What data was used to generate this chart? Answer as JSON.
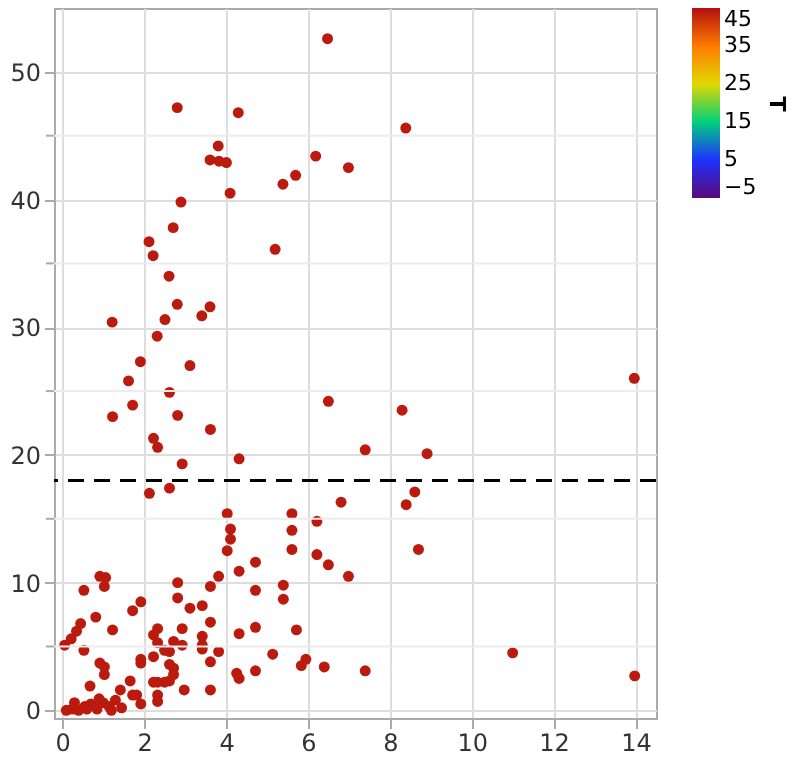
{
  "chart_data": {
    "type": "scatter",
    "x": [
      6.48,
      2.81,
      4.3,
      3.81,
      3.61,
      3.83,
      4.01,
      6.19,
      6.99,
      5.7,
      5.39,
      4.1,
      2.9,
      2.71,
      2.12,
      2.22,
      5.2,
      2.61,
      2.81,
      3.61,
      3.41,
      2.51,
      1.22,
      2.32,
      1.91,
      3.12,
      1.62,
      8.39,
      13.97,
      2.62,
      6.5,
      1.72,
      1.23,
      2.82,
      3.62,
      2.23,
      2.33,
      7.4,
      4.32,
      2.93,
      2.62,
      2.13,
      8.3,
      8.91,
      8.61,
      8.4,
      8.7,
      11.0,
      13.98,
      4.03,
      5.61,
      4.11,
      5.61,
      4.11,
      6.22,
      6.81,
      4.03,
      5.61,
      6.22,
      4.72,
      6.5,
      3.82,
      6.99,
      0.92,
      1.06,
      1.03,
      2.82,
      3.62,
      5.4,
      0.53,
      4.72,
      2.82,
      5.4,
      1.92,
      1.72,
      0.82,
      3.42,
      3.12,
      4.32,
      3.62,
      0.06,
      0.22,
      0.35,
      0.45,
      0.53,
      1.23,
      2.33,
      2.93,
      2.23,
      2.33,
      3.42,
      3.42,
      3.42,
      4.72,
      4.32,
      3.62,
      3.82,
      2.72,
      2.93,
      2.62,
      2.5,
      2.23,
      1.92,
      1.92,
      0.92,
      1.03,
      1.03,
      2.62,
      2.72,
      2.72,
      2.62,
      2.33,
      2.23,
      2.5,
      2.33,
      2.33,
      2.98,
      1.66,
      1.42,
      1.72,
      1.82,
      1.92,
      0.68,
      3.62,
      4.26,
      4.32,
      4.72,
      5.14,
      5.72,
      5.84,
      5.95,
      6.4,
      7.4,
      0.1,
      0.25,
      0.4,
      0.55,
      0.7,
      0.85,
      1.0,
      1.15,
      1.3,
      1.45,
      0.3,
      0.6,
      0.9,
      1.2
    ],
    "values": [
      52.6,
      47.2,
      46.8,
      44.2,
      43.1,
      43.0,
      42.9,
      43.4,
      42.5,
      41.9,
      41.2,
      40.5,
      39.8,
      37.8,
      36.7,
      35.6,
      36.1,
      34.0,
      31.8,
      31.6,
      30.9,
      30.6,
      30.4,
      29.3,
      27.3,
      27.0,
      25.8,
      45.6,
      26.0,
      24.9,
      24.2,
      23.9,
      23.0,
      23.1,
      22.0,
      21.3,
      20.6,
      20.4,
      19.7,
      19.3,
      17.4,
      17.0,
      23.5,
      20.1,
      17.1,
      16.1,
      12.6,
      4.5,
      2.7,
      15.4,
      15.4,
      14.2,
      14.1,
      13.4,
      14.8,
      16.3,
      12.5,
      12.6,
      12.2,
      11.6,
      11.4,
      10.5,
      10.5,
      10.5,
      10.4,
      9.7,
      10.0,
      9.7,
      9.8,
      9.4,
      9.4,
      8.8,
      8.7,
      8.5,
      7.8,
      7.3,
      8.2,
      8.0,
      10.9,
      6.9,
      5.1,
      5.6,
      6.2,
      6.8,
      4.7,
      6.3,
      6.4,
      6.4,
      5.9,
      5.3,
      5.8,
      5.1,
      4.8,
      6.5,
      6.0,
      3.8,
      4.6,
      5.4,
      5.1,
      4.6,
      4.7,
      4.2,
      4.0,
      3.7,
      3.7,
      3.4,
      2.8,
      3.6,
      3.3,
      2.8,
      2.3,
      2.2,
      2.2,
      2.2,
      1.2,
      0.7,
      1.6,
      2.3,
      1.6,
      1.2,
      1.2,
      0.5,
      1.9,
      1.6,
      2.9,
      2.5,
      3.1,
      4.4,
      6.3,
      3.5,
      4.0,
      3.4,
      3.1,
      0.0,
      0.1,
      0.0,
      0.3,
      0.5,
      0.1,
      0.6,
      0.3,
      0.8,
      0.2,
      0.6,
      0.1,
      0.9,
      0.0
    ],
    "cvalues": [
      44,
      44,
      44,
      44,
      44,
      44,
      44,
      44,
      44,
      44,
      44,
      44,
      44,
      44,
      44,
      44,
      44,
      44,
      44,
      44,
      44,
      44,
      44,
      44,
      44,
      44,
      44,
      44,
      44,
      44,
      44,
      44,
      44,
      44,
      44,
      44,
      44,
      44,
      44,
      44,
      44,
      44,
      44,
      44,
      44,
      44,
      44,
      44,
      44,
      44,
      44,
      44,
      44,
      44,
      44,
      44,
      44,
      44,
      44,
      44,
      44,
      44,
      44,
      44,
      44,
      44,
      44,
      44,
      44,
      44,
      44,
      44,
      44,
      44,
      44,
      44,
      44,
      44,
      44,
      44,
      44,
      44,
      44,
      44,
      44,
      44,
      44,
      44,
      44,
      44,
      44,
      44,
      44,
      44,
      44,
      44,
      44,
      44,
      44,
      44,
      44,
      44,
      44,
      44,
      44,
      44,
      44,
      44,
      44,
      44,
      44,
      44,
      44,
      44,
      44,
      44,
      44,
      44,
      44,
      44,
      44,
      44,
      44,
      44,
      44,
      44,
      44,
      44,
      44,
      44,
      44,
      44,
      44,
      44,
      44,
      44,
      44,
      44,
      44,
      44,
      44,
      44,
      44,
      44,
      44,
      44,
      44
    ],
    "xlim": [
      -0.2,
      14.5
    ],
    "ylim": [
      -0.6,
      55
    ],
    "xticks": [
      0,
      2,
      4,
      6,
      8,
      10,
      12,
      14
    ],
    "yticks": [
      0,
      {
        "value": 5,
        "label": null
      },
      10,
      {
        "value": 15,
        "label": null
      },
      20,
      {
        "value": 25,
        "label": null
      },
      30,
      {
        "value": 35,
        "label": null
      },
      40,
      {
        "value": 45,
        "label": null
      },
      50
    ],
    "clim": [
      -5,
      45
    ],
    "cticks": [
      -5,
      5,
      15,
      25,
      35,
      45
    ],
    "clabel": "T",
    "ref_lines": [
      {
        "axis": "y",
        "value": 18,
        "color": "#000000",
        "line_style": "dashed"
      }
    ],
    "grid": true,
    "marker": "circle"
  }
}
